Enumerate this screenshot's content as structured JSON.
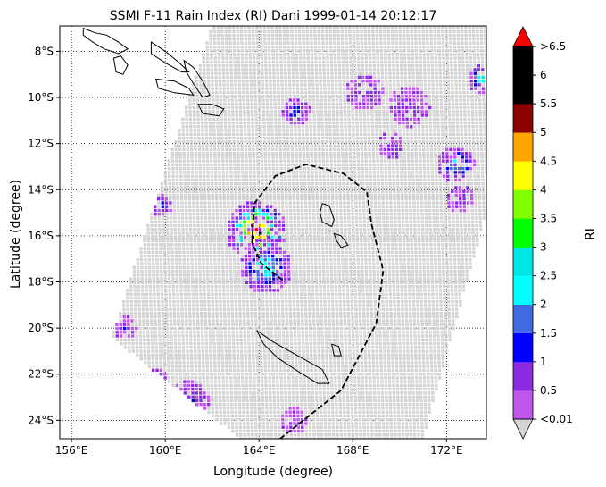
{
  "chart_data": {
    "type": "heatmap",
    "title": "SSMI F-11 Rain Index (RI) Dani 1999-01-14 20:12:17",
    "xlabel": "Longitude (degree)",
    "ylabel": "Latitude (degree)",
    "xlim": [
      155.5,
      173.7
    ],
    "ylim": [
      -24.8,
      -6.9
    ],
    "x_ticks": [
      156,
      160,
      164,
      168,
      172
    ],
    "x_tick_labels": [
      "156°E",
      "160°E",
      "164°E",
      "168°E",
      "172°E"
    ],
    "y_ticks": [
      -8,
      -10,
      -12,
      -14,
      -16,
      -18,
      -20,
      -22,
      -24
    ],
    "y_tick_labels": [
      "8°S",
      "10°S",
      "12°S",
      "14°S",
      "16°S",
      "18°S",
      "20°S",
      "22°S",
      "24°S"
    ],
    "grid": true,
    "grid_style": "dotted",
    "no_rain_color": "#d3d3d3",
    "colorbar": {
      "label": "RI",
      "bounds": [
        0.01,
        0.5,
        1,
        1.5,
        2,
        2.5,
        3,
        3.5,
        4,
        4.5,
        5,
        5.5,
        6,
        6.5
      ],
      "tick_labels": [
        "<0.01",
        "0.5",
        "1",
        "1.5",
        "2",
        "2.5",
        "3",
        "3.5",
        "4",
        "4.5",
        "5",
        "5.5",
        "6",
        ">6.5"
      ],
      "colors": [
        "#bf55ec",
        "#8a2be2",
        "#0000ff",
        "#4169e1",
        "#00ffff",
        "#00e5e5",
        "#00ff00",
        "#7fff00",
        "#ffff00",
        "#ffa500",
        "#8b0000",
        "#000000",
        "#000000"
      ],
      "under_color": "#d3d3d3",
      "over_color": "#ff0000"
    },
    "swath": [
      [
        157.7,
        -20.4
      ],
      [
        162.0,
        -6.9
      ],
      [
        173.7,
        -6.9
      ],
      [
        173.7,
        -15.0
      ],
      [
        171.0,
        -24.8
      ],
      [
        163.2,
        -24.8
      ]
    ],
    "track": [
      [
        164.9,
        -24.8
      ],
      [
        167.5,
        -22.7
      ],
      [
        169.0,
        -19.8
      ],
      [
        169.3,
        -17.5
      ],
      [
        168.8,
        -15.5
      ],
      [
        168.6,
        -14.1
      ],
      [
        167.6,
        -13.3
      ],
      [
        166.0,
        -12.9
      ],
      [
        164.7,
        -13.4
      ],
      [
        163.8,
        -14.6
      ],
      [
        163.7,
        -16.3
      ],
      [
        164.1,
        -17.2
      ],
      [
        165.1,
        -18.0
      ]
    ],
    "islands": [
      {
        "name": "",
        "points": [
          [
            156.5,
            -7.0
          ],
          [
            157.0,
            -7.2
          ],
          [
            157.5,
            -7.3
          ],
          [
            158.0,
            -7.6
          ],
          [
            158.4,
            -7.9
          ],
          [
            158.0,
            -8.1
          ],
          [
            157.4,
            -7.9
          ],
          [
            156.9,
            -7.6
          ],
          [
            156.5,
            -7.3
          ]
        ]
      },
      {
        "name": "",
        "points": [
          [
            157.8,
            -8.3
          ],
          [
            158.1,
            -8.2
          ],
          [
            158.4,
            -8.6
          ],
          [
            158.2,
            -9.0
          ],
          [
            157.9,
            -8.9
          ]
        ]
      },
      {
        "name": "",
        "points": [
          [
            159.4,
            -7.6
          ],
          [
            160.0,
            -8.0
          ],
          [
            160.6,
            -8.5
          ],
          [
            161.0,
            -8.9
          ],
          [
            160.7,
            -8.9
          ],
          [
            160.0,
            -8.5
          ],
          [
            159.4,
            -8.1
          ]
        ]
      },
      {
        "name": "",
        "points": [
          [
            159.6,
            -9.2
          ],
          [
            160.4,
            -9.3
          ],
          [
            161.0,
            -9.6
          ],
          [
            161.2,
            -9.9
          ],
          [
            160.4,
            -9.8
          ],
          [
            159.7,
            -9.6
          ]
        ]
      },
      {
        "name": "",
        "points": [
          [
            160.8,
            -8.4
          ],
          [
            161.2,
            -8.7
          ],
          [
            161.6,
            -9.3
          ],
          [
            161.9,
            -9.9
          ],
          [
            161.6,
            -10.0
          ],
          [
            161.2,
            -9.4
          ],
          [
            160.9,
            -8.9
          ]
        ]
      },
      {
        "name": "",
        "points": [
          [
            161.4,
            -10.3
          ],
          [
            162.0,
            -10.3
          ],
          [
            162.5,
            -10.5
          ],
          [
            162.3,
            -10.8
          ],
          [
            161.6,
            -10.7
          ]
        ]
      },
      {
        "name": "",
        "points": [
          [
            166.7,
            -14.6
          ],
          [
            167.0,
            -14.7
          ],
          [
            167.2,
            -15.3
          ],
          [
            167.1,
            -15.6
          ],
          [
            166.7,
            -15.4
          ],
          [
            166.6,
            -15.0
          ]
        ]
      },
      {
        "name": "",
        "points": [
          [
            167.2,
            -15.9
          ],
          [
            167.5,
            -16.0
          ],
          [
            167.8,
            -16.4
          ],
          [
            167.5,
            -16.5
          ],
          [
            167.3,
            -16.2
          ]
        ]
      },
      {
        "name": "",
        "points": [
          [
            163.9,
            -20.1
          ],
          [
            164.6,
            -20.6
          ],
          [
            165.3,
            -21.0
          ],
          [
            166.0,
            -21.4
          ],
          [
            166.7,
            -21.8
          ],
          [
            167.0,
            -22.4
          ],
          [
            166.5,
            -22.4
          ],
          [
            165.7,
            -21.9
          ],
          [
            164.8,
            -21.3
          ],
          [
            164.2,
            -20.7
          ]
        ]
      },
      {
        "name": "",
        "points": [
          [
            167.1,
            -20.7
          ],
          [
            167.4,
            -20.8
          ],
          [
            167.5,
            -21.2
          ],
          [
            167.2,
            -21.2
          ]
        ]
      }
    ],
    "rain_clusters": [
      {
        "lon": 163.9,
        "lat": -15.8,
        "radius_deg": 1.3,
        "peak": 5.0
      },
      {
        "lon": 164.3,
        "lat": -17.4,
        "radius_deg": 1.1,
        "peak": 2.3
      },
      {
        "lon": 172.4,
        "lat": -12.9,
        "radius_deg": 0.8,
        "peak": 2.2
      },
      {
        "lon": 173.5,
        "lat": -9.2,
        "radius_deg": 0.6,
        "peak": 2.1
      },
      {
        "lon": 159.8,
        "lat": -14.7,
        "radius_deg": 0.5,
        "peak": 1.2
      },
      {
        "lon": 159.5,
        "lat": -22.4,
        "radius_deg": 0.7,
        "peak": 2.0
      },
      {
        "lon": 161.0,
        "lat": -23.2,
        "radius_deg": 0.9,
        "peak": 1.1
      },
      {
        "lon": 165.6,
        "lat": -10.6,
        "radius_deg": 0.6,
        "peak": 1.4
      },
      {
        "lon": 168.5,
        "lat": -9.8,
        "radius_deg": 0.8,
        "peak": 0.9
      },
      {
        "lon": 170.4,
        "lat": -10.4,
        "radius_deg": 0.9,
        "peak": 0.8
      },
      {
        "lon": 169.6,
        "lat": -12.1,
        "radius_deg": 0.6,
        "peak": 0.7
      },
      {
        "lon": 158.3,
        "lat": -20.0,
        "radius_deg": 0.5,
        "peak": 1.0
      },
      {
        "lon": 165.5,
        "lat": -24.0,
        "radius_deg": 0.6,
        "peak": 0.6
      },
      {
        "lon": 172.6,
        "lat": -14.4,
        "radius_deg": 0.6,
        "peak": 0.8
      }
    ]
  }
}
